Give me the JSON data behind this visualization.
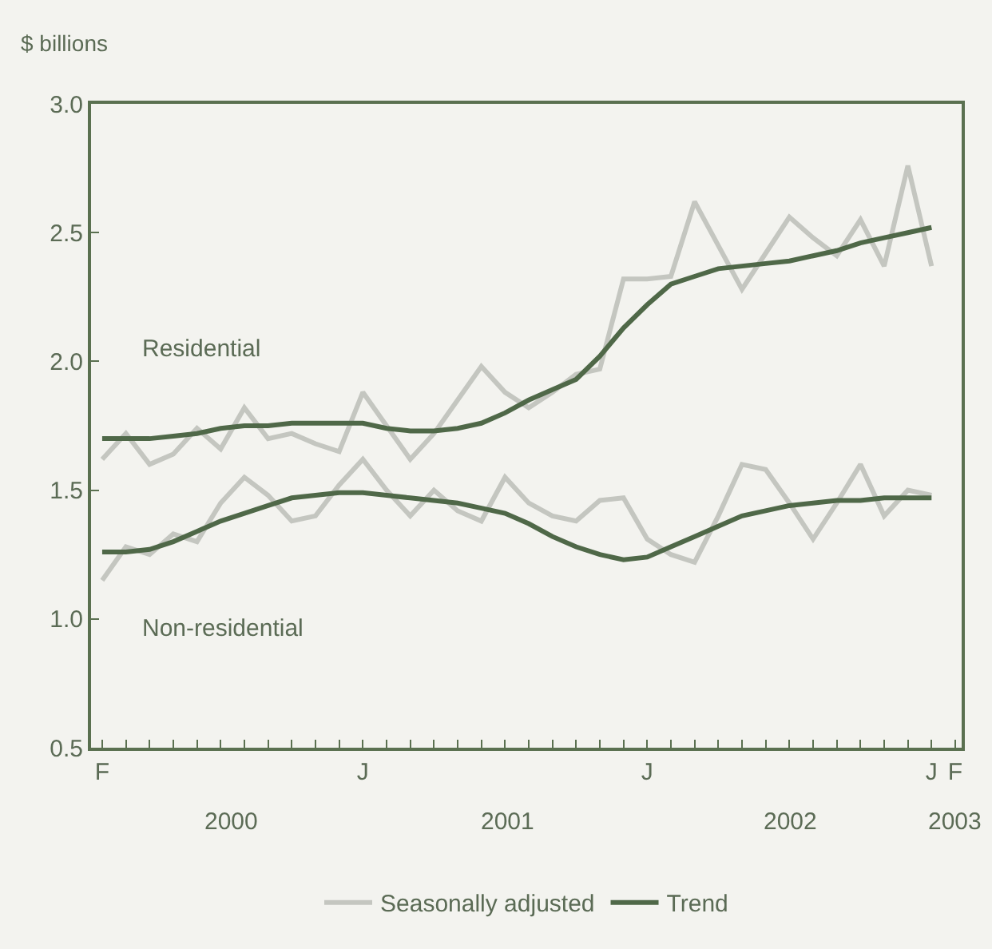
{
  "chart_data": {
    "type": "line",
    "ylabel": "$ billions",
    "categories": [
      "F",
      null,
      null,
      null,
      null,
      null,
      null,
      null,
      null,
      null,
      null,
      "J",
      null,
      null,
      null,
      null,
      null,
      null,
      null,
      null,
      null,
      null,
      null,
      "J",
      null,
      null,
      null,
      null,
      null,
      null,
      null,
      null,
      null,
      null,
      null,
      "J",
      "F"
    ],
    "series": [
      {
        "name": "Seasonally adjusted",
        "color": "#c4c6c0",
        "values": [
          1.62,
          1.72,
          1.6,
          1.64,
          1.74,
          1.66,
          1.82,
          1.7,
          1.72,
          1.68,
          1.65,
          1.88,
          1.75,
          1.62,
          1.72,
          1.85,
          1.98,
          1.88,
          1.82,
          1.88,
          1.95,
          1.97,
          2.32,
          2.32,
          2.33,
          2.62,
          2.45,
          2.28,
          2.42,
          2.56,
          2.48,
          2.41,
          2.55,
          2.37,
          2.76,
          2.37,
          null
        ]
      },
      {
        "color": "#c4c6c0",
        "values": [
          1.15,
          1.28,
          1.25,
          1.33,
          1.3,
          1.45,
          1.55,
          1.48,
          1.38,
          1.4,
          1.52,
          1.62,
          1.5,
          1.4,
          1.5,
          1.42,
          1.38,
          1.55,
          1.45,
          1.4,
          1.38,
          1.46,
          1.47,
          1.31,
          1.25,
          1.22,
          1.4,
          1.6,
          1.58,
          1.45,
          1.31,
          1.45,
          1.6,
          1.4,
          1.5,
          1.48,
          null
        ]
      },
      {
        "name": "Trend",
        "color": "#4f6848",
        "values": [
          1.7,
          1.7,
          1.7,
          1.71,
          1.72,
          1.74,
          1.75,
          1.75,
          1.76,
          1.76,
          1.76,
          1.76,
          1.74,
          1.73,
          1.73,
          1.74,
          1.76,
          1.8,
          1.85,
          1.89,
          1.93,
          2.02,
          2.13,
          2.22,
          2.3,
          2.33,
          2.36,
          2.37,
          2.38,
          2.39,
          2.41,
          2.43,
          2.46,
          2.48,
          2.5,
          2.52,
          null
        ]
      },
      {
        "color": "#4f6848",
        "values": [
          1.26,
          1.26,
          1.27,
          1.3,
          1.34,
          1.38,
          1.41,
          1.44,
          1.47,
          1.48,
          1.49,
          1.49,
          1.48,
          1.47,
          1.46,
          1.45,
          1.43,
          1.41,
          1.37,
          1.32,
          1.28,
          1.25,
          1.23,
          1.24,
          1.28,
          1.32,
          1.36,
          1.4,
          1.42,
          1.44,
          1.45,
          1.46,
          1.46,
          1.47,
          1.47,
          1.47,
          null
        ]
      }
    ],
    "ylim": [
      0.5,
      3.0
    ],
    "yticks": [
      {
        "value": 0.5,
        "label": "0.5"
      },
      {
        "value": 1,
        "label": "1.0"
      },
      {
        "value": 1.5,
        "label": "1.5"
      },
      {
        "value": 2,
        "label": "2.0"
      },
      {
        "value": 2.5,
        "label": "2.5"
      },
      {
        "value": 3,
        "label": "3.0"
      }
    ],
    "annotations": [
      "Residential",
      "Non-residential",
      "2000",
      "2001",
      "2002",
      "2003"
    ],
    "legend": "bottom",
    "grid": false,
    "marker": "none",
    "line_style": "solid"
  }
}
